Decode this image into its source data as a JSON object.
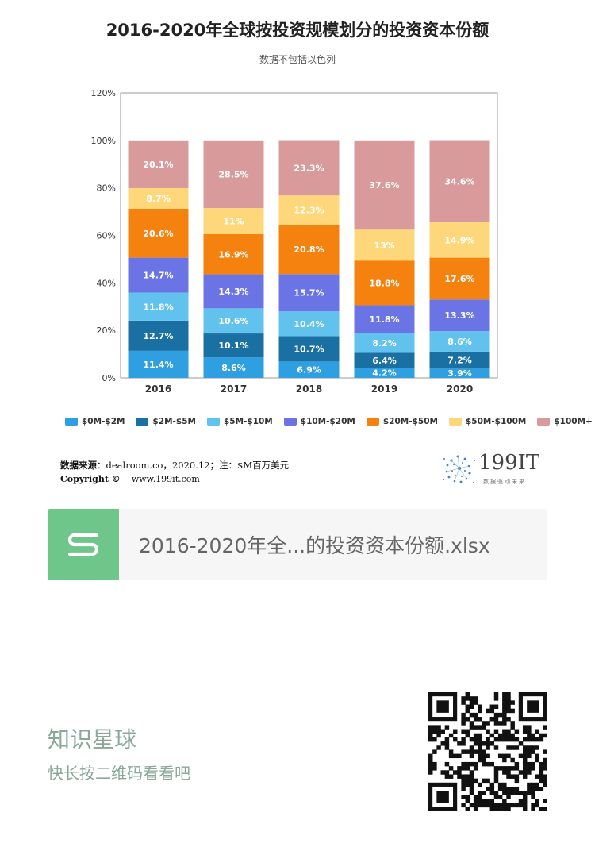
{
  "chart_data": {
    "type": "bar",
    "stacked": true,
    "title": "2016-2020年全球按投资规模划分的投资资本份额",
    "subtitle": "数据不包括以色列",
    "categories": [
      "2016",
      "2017",
      "2018",
      "2019",
      "2020"
    ],
    "y_ticks": [
      "0%",
      "20%",
      "40%",
      "60%",
      "80%",
      "100%",
      "120%"
    ],
    "ylim": [
      0,
      120
    ],
    "grid": false,
    "legend_position": "bottom",
    "series": [
      {
        "name": "$0M-$2M",
        "color": "#2e9fe0",
        "values": [
          11.4,
          8.6,
          6.9,
          4.2,
          3.9
        ],
        "labels": [
          "11.4%",
          "8.6%",
          "6.9%",
          "4.2%",
          "3.9%"
        ]
      },
      {
        "name": "$2M-$5M",
        "color": "#1a6fa3",
        "values": [
          12.7,
          10.1,
          10.7,
          6.4,
          7.2
        ],
        "labels": [
          "12.7%",
          "10.1%",
          "10.7%",
          "6.4%",
          "7.2%"
        ]
      },
      {
        "name": "$5M-$10M",
        "color": "#62c2ee",
        "values": [
          11.8,
          10.6,
          10.4,
          8.2,
          8.6
        ],
        "labels": [
          "11.8%",
          "10.6%",
          "10.4%",
          "8.2%",
          "8.6%"
        ]
      },
      {
        "name": "$10M-$20M",
        "color": "#6b74e4",
        "values": [
          14.7,
          14.3,
          15.7,
          11.8,
          13.3
        ],
        "labels": [
          "14.7%",
          "14.3%",
          "15.7%",
          "11.8%",
          "13.3%"
        ]
      },
      {
        "name": "$20M-$50M",
        "color": "#f5820f",
        "values": [
          20.6,
          16.9,
          20.8,
          18.8,
          17.6
        ],
        "labels": [
          "20.6%",
          "16.9%",
          "20.8%",
          "18.8%",
          "17.6%"
        ]
      },
      {
        "name": "$50M-$100M",
        "color": "#fdd77a",
        "values": [
          8.7,
          11,
          12.3,
          13,
          14.9
        ],
        "labels": [
          "8.7%",
          "11%",
          "12.3%",
          "13%",
          "14.9%"
        ]
      },
      {
        "name": "$100M+",
        "color": "#d89a9a",
        "values": [
          20.1,
          28.5,
          23.3,
          37.6,
          34.6
        ],
        "labels": [
          "20.1%",
          "28.5%",
          "23.3%",
          "37.6%",
          "34.6%"
        ]
      }
    ]
  },
  "footer": {
    "source_label": "数据来源",
    "source_text": "：dealroom.co，2020.12；注：$M百万美元",
    "copyright_label": "Copyright ©",
    "copyright_url": "www.199it.com"
  },
  "logo": {
    "text": "199IT",
    "tagline": "数据驱动未来"
  },
  "file_card": {
    "icon": "spreadsheet-s-icon",
    "file_name": "2016-2020年全...的投资资本份额.xlsx",
    "icon_color": "#6fc68a"
  },
  "promo": {
    "title": "知识星球",
    "subtitle": "快长按二维码看看吧",
    "qr_icon": "qr-code-icon"
  }
}
